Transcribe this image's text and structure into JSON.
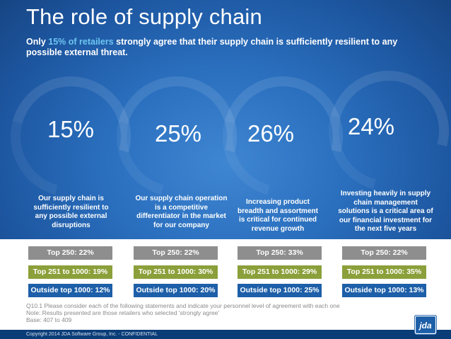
{
  "title": "The role of supply chain",
  "subtitle": {
    "prefix": "Only ",
    "highlight": "15% of retailers",
    "suffix": " strongly agree that their supply chain is sufficiently resilient to any possible external threat."
  },
  "colors": {
    "highlight": "#6ec6f2",
    "top250": "#8e8e8e",
    "top251_1000": "#8ba03a",
    "outside1000": "#1d5fa8"
  },
  "stats": [
    {
      "value": "15%",
      "description": "Our supply chain is sufficiently resilient to any possible external disruptions",
      "top250": "Top 250: 22%",
      "top251": "Top 251 to 1000: 19%",
      "outside": "Outside top 1000: 12%"
    },
    {
      "value": "25%",
      "description": "Our supply chain operation is a competitive differentiator in the market for our company",
      "top250": "Top 250: 22%",
      "top251": "Top 251 to 1000: 30%",
      "outside": "Outside top 1000: 20%"
    },
    {
      "value": "26%",
      "description": "Increasing product breadth and assortment is critical for continued revenue growth",
      "top250": "Top 250: 33%",
      "top251": "Top 251 to 1000: 29%",
      "outside": "Outside top 1000: 25%"
    },
    {
      "value": "24%",
      "description": "Investing heavily in supply chain management solutions is a critical area of our financial investment for the next five years",
      "top250": "Top 250: 22%",
      "top251": "Top 251 to 1000: 35%",
      "outside": "Outside top 1000: 13%"
    }
  ],
  "notes": {
    "line1": "Q10.1 Please consider each of the following statements and indicate your personnel level of agreement with each one",
    "line2": "Note: Results presented are those retailers who selected 'strongly agree'",
    "line3": "Base: 407  to 409"
  },
  "footer": {
    "copyright": "Copyright 2014 JDA Software Group, Inc. - CONFIDENTIAL",
    "logo": "jda"
  }
}
